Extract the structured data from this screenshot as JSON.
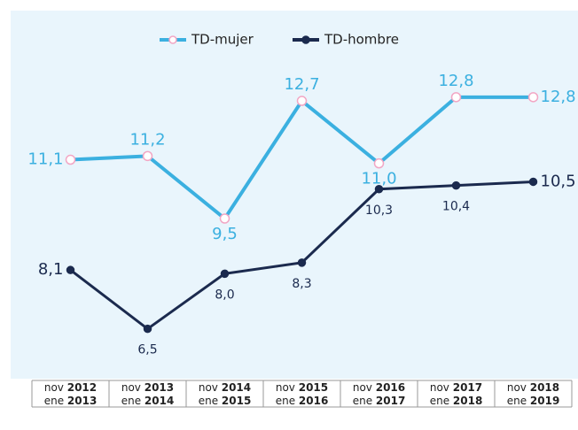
{
  "chart_data": {
    "type": "line",
    "categories": [
      "nov 2012 ene 2013",
      "nov 2013 ene 2014",
      "nov 2014 ene 2015",
      "nov 2015 ene 2016",
      "nov 2016 ene 2017",
      "nov 2017 ene 2018",
      "nov 2018 ene 2019"
    ],
    "series": [
      {
        "name": "TD-mujer",
        "color": "#3bb0e0",
        "marker_edge": "#f2a6c4",
        "values": [
          11.1,
          11.2,
          9.5,
          12.7,
          11.0,
          12.8,
          12.8
        ],
        "value_labels": [
          "11,1",
          "11,2",
          "9,5",
          "12,7",
          "11,0",
          "12,8",
          "12,8"
        ]
      },
      {
        "name": "TD-hombre",
        "color": "#1b2a4e",
        "marker_edge": "#1b2a4e",
        "values": [
          8.1,
          6.5,
          8.0,
          8.3,
          10.3,
          10.4,
          10.5
        ],
        "value_labels": [
          "8,1",
          "6,5",
          "8,0",
          "8,3",
          "10,3",
          "10,4",
          "10,5"
        ]
      }
    ],
    "ylim": [
      5,
      14
    ],
    "legend": "top"
  }
}
